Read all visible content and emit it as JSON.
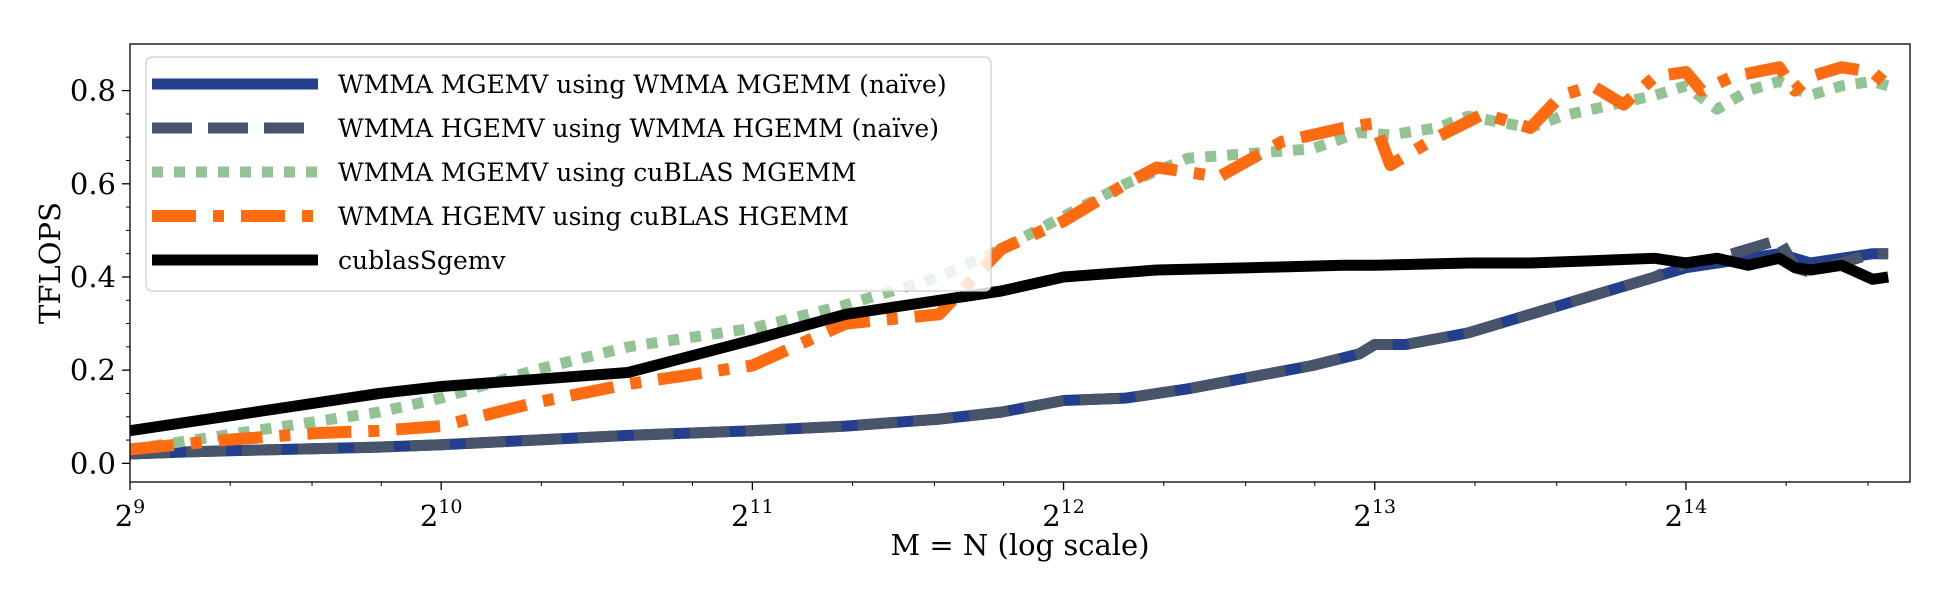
{
  "chart_data": {
    "type": "line",
    "title": "",
    "xlabel": "M = N (log scale)",
    "ylabel": "TFLOPS",
    "xscale": "log2",
    "xlim_exp": [
      9,
      14.72
    ],
    "ylim": [
      -0.04,
      0.9
    ],
    "xticks": [
      {
        "base": "2",
        "exp": "9",
        "value": 9
      },
      {
        "base": "2",
        "exp": "10",
        "value": 10
      },
      {
        "base": "2",
        "exp": "11",
        "value": 11
      },
      {
        "base": "2",
        "exp": "12",
        "value": 12
      },
      {
        "base": "2",
        "exp": "13",
        "value": 13
      },
      {
        "base": "2",
        "exp": "14",
        "value": 14
      }
    ],
    "yticks": [
      {
        "label": "0.0",
        "value": 0.0
      },
      {
        "label": "0.2",
        "value": 0.2
      },
      {
        "label": "0.4",
        "value": 0.4
      },
      {
        "label": "0.6",
        "value": 0.6
      },
      {
        "label": "0.8",
        "value": 0.8
      }
    ],
    "grid": false,
    "legend_position": "top-left",
    "series": [
      {
        "name": "WMMA MGEMV using WMMA MGEMM (naïve)",
        "color": "#233e8b",
        "style": "solid",
        "x": [
          9.0,
          9.2,
          9.5,
          9.8,
          10.0,
          10.3,
          10.6,
          11.0,
          11.3,
          11.6,
          11.8,
          12.0,
          12.2,
          12.4,
          12.6,
          12.8,
          12.95,
          13.0,
          13.1,
          13.3,
          13.5,
          13.7,
          13.9,
          14.0,
          14.1,
          14.3,
          14.4,
          14.5,
          14.6,
          14.65
        ],
        "values": [
          0.02,
          0.025,
          0.03,
          0.035,
          0.04,
          0.05,
          0.06,
          0.07,
          0.08,
          0.095,
          0.11,
          0.135,
          0.14,
          0.16,
          0.185,
          0.21,
          0.235,
          0.255,
          0.255,
          0.28,
          0.32,
          0.36,
          0.4,
          0.42,
          0.43,
          0.45,
          0.43,
          0.44,
          0.45,
          0.45
        ]
      },
      {
        "name": "WMMA HGEMV using WMMA HGEMM (naïve)",
        "color": "#47546a",
        "style": "dashed",
        "x": [
          9.0,
          9.2,
          9.5,
          9.8,
          10.0,
          10.3,
          10.6,
          11.0,
          11.3,
          11.6,
          11.8,
          12.0,
          12.2,
          12.4,
          12.6,
          12.8,
          12.95,
          13.0,
          13.1,
          13.3,
          13.5,
          13.7,
          13.9,
          14.0,
          14.1,
          14.25,
          14.3,
          14.35,
          14.4,
          14.5,
          14.6,
          14.65
        ],
        "values": [
          0.02,
          0.025,
          0.03,
          0.035,
          0.04,
          0.05,
          0.06,
          0.07,
          0.08,
          0.095,
          0.11,
          0.135,
          0.14,
          0.16,
          0.185,
          0.21,
          0.235,
          0.255,
          0.255,
          0.28,
          0.32,
          0.36,
          0.4,
          0.43,
          0.44,
          0.47,
          0.48,
          0.42,
          0.41,
          0.43,
          0.45,
          0.45
        ]
      },
      {
        "name": "WMMA MGEMV using cuBLAS MGEMM",
        "color": "#93c394",
        "style": "dotted",
        "x": [
          9.0,
          9.3,
          9.6,
          9.8,
          10.0,
          10.3,
          10.6,
          11.0,
          11.3,
          11.6,
          11.8,
          12.0,
          12.2,
          12.4,
          12.6,
          12.8,
          12.95,
          13.05,
          13.2,
          13.3,
          13.5,
          13.6,
          13.7,
          13.9,
          14.0,
          14.1,
          14.2,
          14.3,
          14.4,
          14.5,
          14.6,
          14.65
        ],
        "values": [
          0.03,
          0.06,
          0.09,
          0.11,
          0.14,
          0.2,
          0.25,
          0.29,
          0.34,
          0.4,
          0.46,
          0.53,
          0.6,
          0.655,
          0.665,
          0.675,
          0.71,
          0.705,
          0.72,
          0.745,
          0.72,
          0.745,
          0.76,
          0.79,
          0.81,
          0.76,
          0.8,
          0.82,
          0.79,
          0.81,
          0.82,
          0.81
        ]
      },
      {
        "name": "WMMA HGEMV using cuBLAS HGEMM",
        "color": "#ff6b10",
        "style": "dashdot",
        "x": [
          9.0,
          9.3,
          9.6,
          9.8,
          10.0,
          10.3,
          10.6,
          11.0,
          11.3,
          11.6,
          11.8,
          12.0,
          12.2,
          12.3,
          12.5,
          12.7,
          12.9,
          13.0,
          13.05,
          13.2,
          13.35,
          13.5,
          13.6,
          13.7,
          13.8,
          13.9,
          14.0,
          14.05,
          14.15,
          14.3,
          14.35,
          14.4,
          14.5,
          14.6,
          14.65
        ],
        "values": [
          0.03,
          0.05,
          0.065,
          0.07,
          0.08,
          0.13,
          0.17,
          0.21,
          0.3,
          0.32,
          0.46,
          0.52,
          0.6,
          0.635,
          0.615,
          0.69,
          0.72,
          0.73,
          0.64,
          0.7,
          0.75,
          0.72,
          0.79,
          0.81,
          0.77,
          0.83,
          0.84,
          0.8,
          0.83,
          0.85,
          0.8,
          0.83,
          0.85,
          0.84,
          0.81
        ]
      },
      {
        "name": "cublasSgemv",
        "color": "#000000",
        "style": "solid",
        "x": [
          9.0,
          9.3,
          9.6,
          9.8,
          10.0,
          10.3,
          10.6,
          11.0,
          11.3,
          11.6,
          11.8,
          12.0,
          12.3,
          12.6,
          12.9,
          13.0,
          13.3,
          13.5,
          13.7,
          13.9,
          14.0,
          14.1,
          14.2,
          14.3,
          14.35,
          14.4,
          14.5,
          14.6,
          14.65
        ],
        "values": [
          0.07,
          0.1,
          0.13,
          0.15,
          0.165,
          0.18,
          0.195,
          0.265,
          0.32,
          0.35,
          0.37,
          0.4,
          0.415,
          0.42,
          0.425,
          0.425,
          0.43,
          0.43,
          0.435,
          0.44,
          0.43,
          0.44,
          0.425,
          0.44,
          0.42,
          0.415,
          0.425,
          0.395,
          0.4
        ]
      }
    ]
  }
}
